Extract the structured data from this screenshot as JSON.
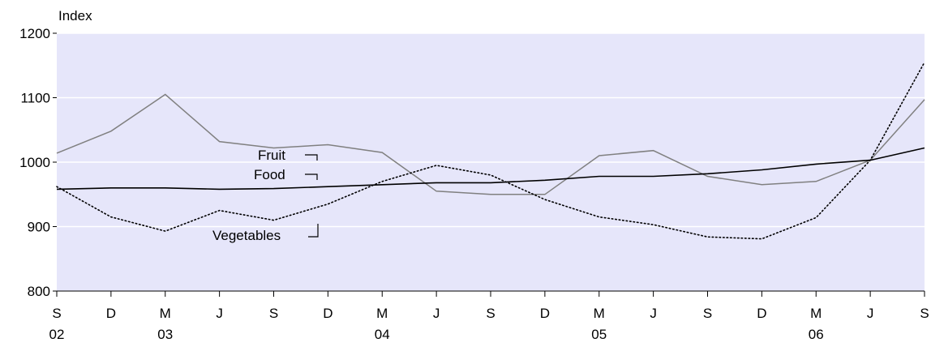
{
  "chart_data": {
    "type": "line",
    "ylabel": "Index",
    "ylim": [
      800,
      1200
    ],
    "yticks": [
      800,
      900,
      1000,
      1100,
      1200
    ],
    "grid": "horizontal",
    "background_color": "#e6e6fa",
    "x_month_labels": [
      "S",
      "D",
      "M",
      "J",
      "S",
      "D",
      "M",
      "J",
      "S",
      "D",
      "M",
      "J",
      "S",
      "D",
      "M",
      "J",
      "S"
    ],
    "x_year_labels": [
      {
        "index": 0,
        "label": "02"
      },
      {
        "index": 2,
        "label": "03"
      },
      {
        "index": 6,
        "label": "04"
      },
      {
        "index": 10,
        "label": "05"
      },
      {
        "index": 14,
        "label": "06"
      }
    ],
    "series": [
      {
        "name": "Fruit",
        "color": "#808080",
        "style": "solid",
        "values": [
          1014,
          1048,
          1105,
          1032,
          1022,
          1027,
          1015,
          955,
          950,
          950,
          1010,
          1018,
          978,
          965,
          970,
          1003,
          1097
        ]
      },
      {
        "name": "Food",
        "color": "#000000",
        "style": "solid",
        "values": [
          958,
          960,
          960,
          958,
          959,
          962,
          965,
          968,
          968,
          972,
          978,
          978,
          982,
          988,
          997,
          1003,
          1022
        ]
      },
      {
        "name": "Vegetables",
        "color": "#000000",
        "style": "dotted",
        "values": [
          962,
          915,
          893,
          925,
          910,
          935,
          970,
          995,
          980,
          942,
          915,
          903,
          884,
          881,
          914,
          1003,
          1155
        ]
      }
    ],
    "annotations": [
      {
        "text": "Fruit",
        "series": "Fruit"
      },
      {
        "text": "Food",
        "series": "Food"
      },
      {
        "text": "Vegetables",
        "series": "Vegetables"
      }
    ]
  }
}
